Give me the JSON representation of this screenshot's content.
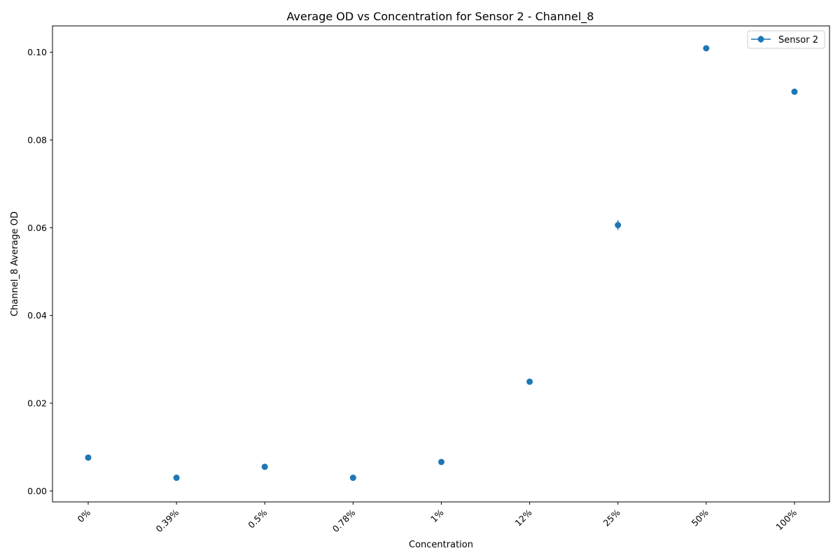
{
  "chart_data": {
    "type": "scatter",
    "title": "Average OD vs Concentration for Sensor 2 - Channel_8",
    "xlabel": "Concentration",
    "ylabel": "Channel_8 Average OD",
    "categories": [
      "0%",
      "0.39%",
      "0.5%",
      "0.78%",
      "1%",
      "12%",
      "25%",
      "50%",
      "100%"
    ],
    "ylim": [
      -0.0025,
      0.106
    ],
    "yticks": [
      0.0,
      0.02,
      0.04,
      0.06,
      0.08,
      0.1
    ],
    "ytick_labels": [
      "0.00",
      "0.02",
      "0.04",
      "0.06",
      "0.08",
      "0.10"
    ],
    "grid": false,
    "legend_position": "top-right",
    "series": [
      {
        "name": "Sensor 2",
        "color": "#1f77b4",
        "marker": "circle",
        "values": [
          0.0076,
          0.003,
          0.0055,
          0.003,
          0.0066,
          0.0249,
          0.0606,
          0.1009,
          0.091
        ],
        "errors": [
          0.0002,
          0.0002,
          0.0002,
          0.0002,
          0.0002,
          0.0004,
          0.0011,
          0.0002,
          0.0002
        ]
      }
    ]
  }
}
